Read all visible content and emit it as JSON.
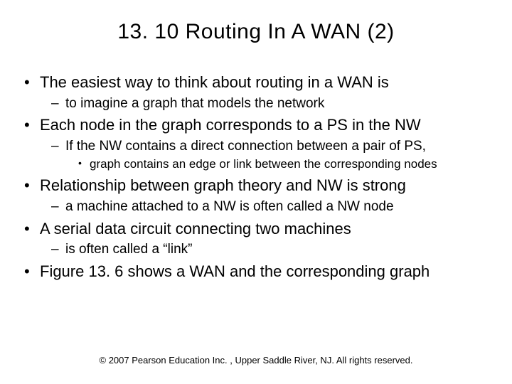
{
  "slide": {
    "title": "13. 10 Routing In A WAN (2)",
    "bullets": [
      {
        "text": "The easiest way to think about routing in a WAN is",
        "sub": [
          {
            "text": "to imagine a graph that models the network"
          }
        ]
      },
      {
        "text": "Each node in the graph corresponds to a PS in the NW",
        "sub": [
          {
            "text": "If the NW contains a direct connection between a pair of PS,",
            "sub": [
              {
                "text": "graph contains an edge or link between the corresponding nodes"
              }
            ]
          }
        ]
      },
      {
        "text": "Relationship between graph theory and NW is strong",
        "sub": [
          {
            "text": "a machine attached to a NW is often called a NW node"
          }
        ]
      },
      {
        "text": "A serial data circuit connecting two machines",
        "sub": [
          {
            "text": "is often called a “link”"
          }
        ]
      },
      {
        "text": "Figure 13. 6 shows a WAN and the corresponding graph"
      }
    ],
    "footer": "© 2007 Pearson Education Inc. , Upper Saddle River, NJ. All rights reserved."
  }
}
